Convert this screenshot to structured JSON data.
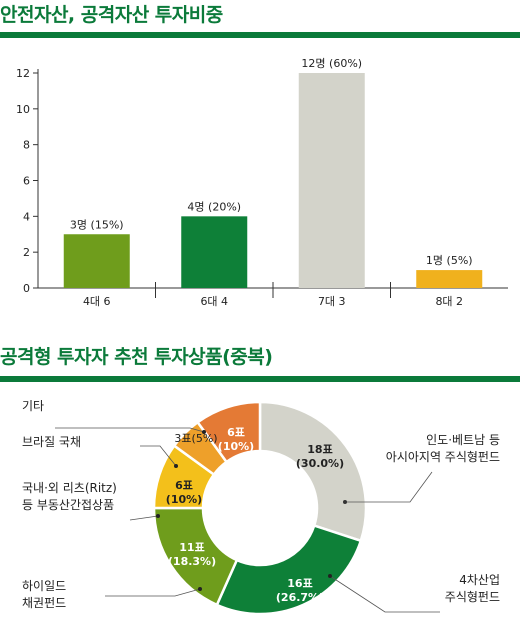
{
  "chart_data": [
    {
      "type": "bar",
      "title": "안전자산, 공격자산 투자비중",
      "categories": [
        "4대 6",
        "6대 4",
        "7대 3",
        "8대 2"
      ],
      "values": [
        3,
        4,
        12,
        1
      ],
      "value_labels": [
        "3명 (15%)",
        "4명 (20%)",
        "12명 (60%)",
        "1명 (5%)"
      ],
      "colors": [
        "#6f9d1c",
        "#0e8038",
        "#d3d3ca",
        "#f0b11d"
      ],
      "yticks": [
        "0",
        "2",
        "4",
        "6",
        "8",
        "10",
        "12"
      ],
      "ylim": [
        0,
        12
      ],
      "grid": false
    },
    {
      "type": "pie",
      "title": "공격형 투자자 추천 투자상품(중복)",
      "slices": [
        {
          "value": 18,
          "label_line1": "18표",
          "label_line2": "(30.0%)",
          "name_line1": "인도·베트남 등",
          "name_line2": "아시아지역 주식형펀드",
          "color": "#d3d3ca"
        },
        {
          "value": 16,
          "label_line1": "16표",
          "label_line2": "(26.7%)",
          "name_line1": "4차산업",
          "name_line2": "주식형펀드",
          "color": "#0e8038"
        },
        {
          "value": 11,
          "label_line1": "11표",
          "label_line2": "(18.3%)",
          "name_line1": "하이일드",
          "name_line2": "채권펀드",
          "color": "#6f9d1c"
        },
        {
          "value": 6,
          "label_line1": "6표",
          "label_line2": "(10%)",
          "name_line1": "국내·외 리츠(Ritz)",
          "name_line2": "등 부동산간접상품",
          "color": "#f3c01b"
        },
        {
          "value": 3,
          "label_line1": "3표(5%)",
          "label_line2": "",
          "name_line1": "브라질 국채",
          "name_line2": "",
          "color": "#eea02a"
        },
        {
          "value": 6,
          "label_line1": "6표",
          "label_line2": "(10%)",
          "name_line1": "기타",
          "name_line2": "",
          "color": "#e47a35"
        }
      ]
    }
  ]
}
